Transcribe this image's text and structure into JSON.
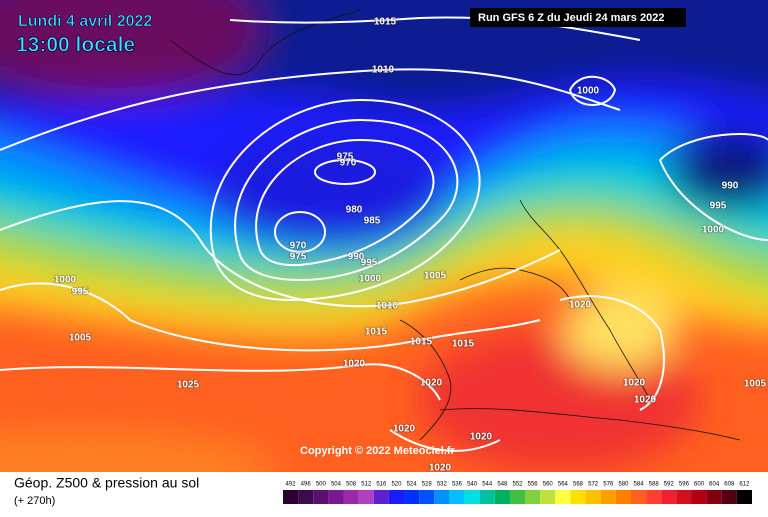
{
  "header": {
    "date": "Lundi 4 avril 2022",
    "time": "13:00 locale",
    "run": "Run GFS 6 Z du Jeudi 24 mars 2022"
  },
  "isobar_labels": [
    "1015",
    "1010",
    "1000",
    "975",
    "970",
    "980",
    "985",
    "970",
    "975",
    "990",
    "995",
    "1000",
    "1005",
    "990",
    "995",
    "1000",
    "1000",
    "995",
    "1005",
    "1010",
    "1015",
    "1015",
    "1015",
    "1020",
    "1020",
    "1025",
    "1020",
    "1020",
    "1020",
    "1020",
    "1020",
    "1020",
    "1005"
  ],
  "copyright": "Copyright © 2022 Meteociel.fr",
  "footer": {
    "title": "Géop. Z500 & pression au sol",
    "subtitle": "(+ 270h)"
  },
  "scale": {
    "values": [
      492,
      496,
      500,
      504,
      508,
      512,
      516,
      520,
      524,
      528,
      532,
      536,
      540,
      544,
      548,
      552,
      556,
      560,
      564,
      568,
      572,
      576,
      580,
      584,
      588,
      592,
      596,
      600,
      604,
      608,
      612
    ],
    "colors": [
      "#2a0030",
      "#3d0a4a",
      "#5a1070",
      "#7a1890",
      "#9a2aa8",
      "#b040c0",
      "#6020d0",
      "#1a1aff",
      "#0030ff",
      "#0050ff",
      "#0090ff",
      "#00c0ff",
      "#00e0e0",
      "#00c0a0",
      "#00b060",
      "#40c040",
      "#80d040",
      "#c0e040",
      "#ffff40",
      "#ffe000",
      "#ffc000",
      "#ffa000",
      "#ff8000",
      "#ff6020",
      "#ff4030",
      "#f02030",
      "#d01020",
      "#b00010",
      "#800010",
      "#500010",
      "#000000"
    ]
  }
}
